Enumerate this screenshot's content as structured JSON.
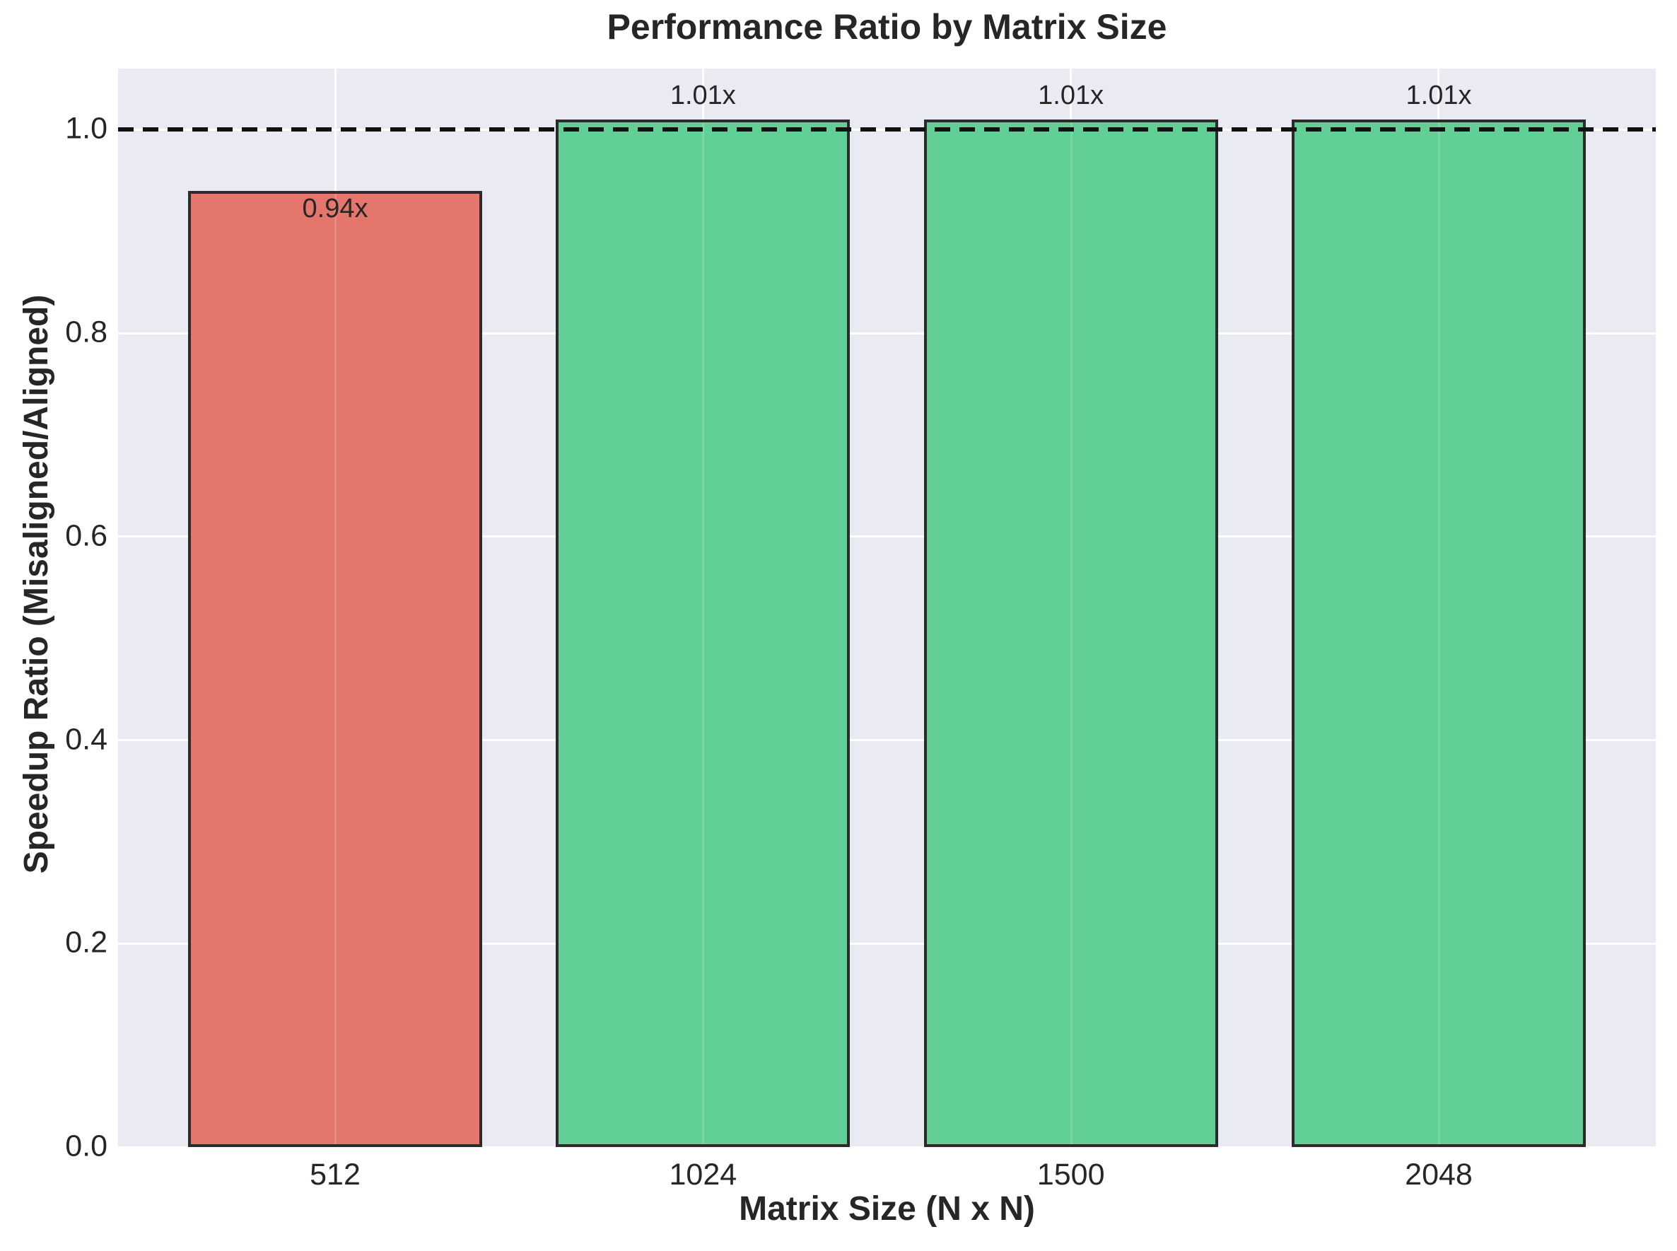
{
  "chart_data": {
    "type": "bar",
    "title": "Performance Ratio by Matrix Size",
    "xlabel": "Matrix Size (N x N)",
    "ylabel": "Speedup Ratio (Misaligned/Aligned)",
    "categories": [
      "512",
      "1024",
      "1500",
      "2048"
    ],
    "values": [
      0.94,
      1.01,
      1.01,
      1.01
    ],
    "bar_labels": [
      "0.94x",
      "1.01x",
      "1.01x",
      "1.01x"
    ],
    "bar_colors": [
      "#e4766c",
      "#62cf96",
      "#62cf96",
      "#62cf96"
    ],
    "bar_edge_color": "#2b2b2b",
    "yticks": [
      0.0,
      0.2,
      0.4,
      0.6,
      0.8,
      1.0
    ],
    "ytick_labels": [
      "0.0",
      "0.2",
      "0.4",
      "0.6",
      "0.8",
      "1.0"
    ],
    "ylim": [
      0,
      1.06
    ],
    "reference_line": {
      "y": 1.0,
      "style": "dashed",
      "color": "#111111"
    },
    "grid": true,
    "legend": null,
    "plot_background": "#eaeaf2",
    "grid_color": "#ffffff",
    "text_color": "#262626"
  }
}
